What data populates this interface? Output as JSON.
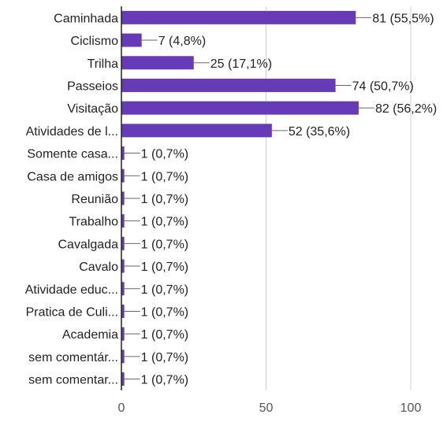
{
  "chart_data": {
    "type": "bar",
    "orientation": "horizontal",
    "categories": [
      "Caminhada",
      "Ciclismo",
      "Trilha",
      "Passeios",
      "Visitação",
      "Atividades de l...",
      "Somente casa...",
      "Casa de amigos",
      "Reunião",
      "Trabalho",
      "Cavalgada",
      "Cavalo",
      "Atividade educ...",
      "Pratica de Culi...",
      "Academia",
      "sem comentár...",
      "sem comentar..."
    ],
    "values": [
      81,
      7,
      25,
      74,
      82,
      52,
      1,
      1,
      1,
      1,
      1,
      1,
      1,
      1,
      1,
      1,
      1
    ],
    "value_labels": [
      "81 (55,5%)",
      "7 (4,8%)",
      "25 (17,1%)",
      "74 (50,7%)",
      "82 (56,2%)",
      "52 (35,6%)",
      "1 (0,7%)",
      "1 (0,7%)",
      "1 (0,7%)",
      "1 (0,7%)",
      "1 (0,7%)",
      "1 (0,7%)",
      "1 (0,7%)",
      "1 (0,7%)",
      "1 (0,7%)",
      "1 (0,7%)",
      "1 (0,7%)"
    ],
    "xlim": [
      0,
      100
    ],
    "xticks": [
      0,
      50,
      100
    ],
    "grid": true,
    "colors": {
      "bar": "#673ab7",
      "grid": "#cfcfcf",
      "axis": "#222222",
      "text": "#222222",
      "leader": "#666666"
    }
  }
}
